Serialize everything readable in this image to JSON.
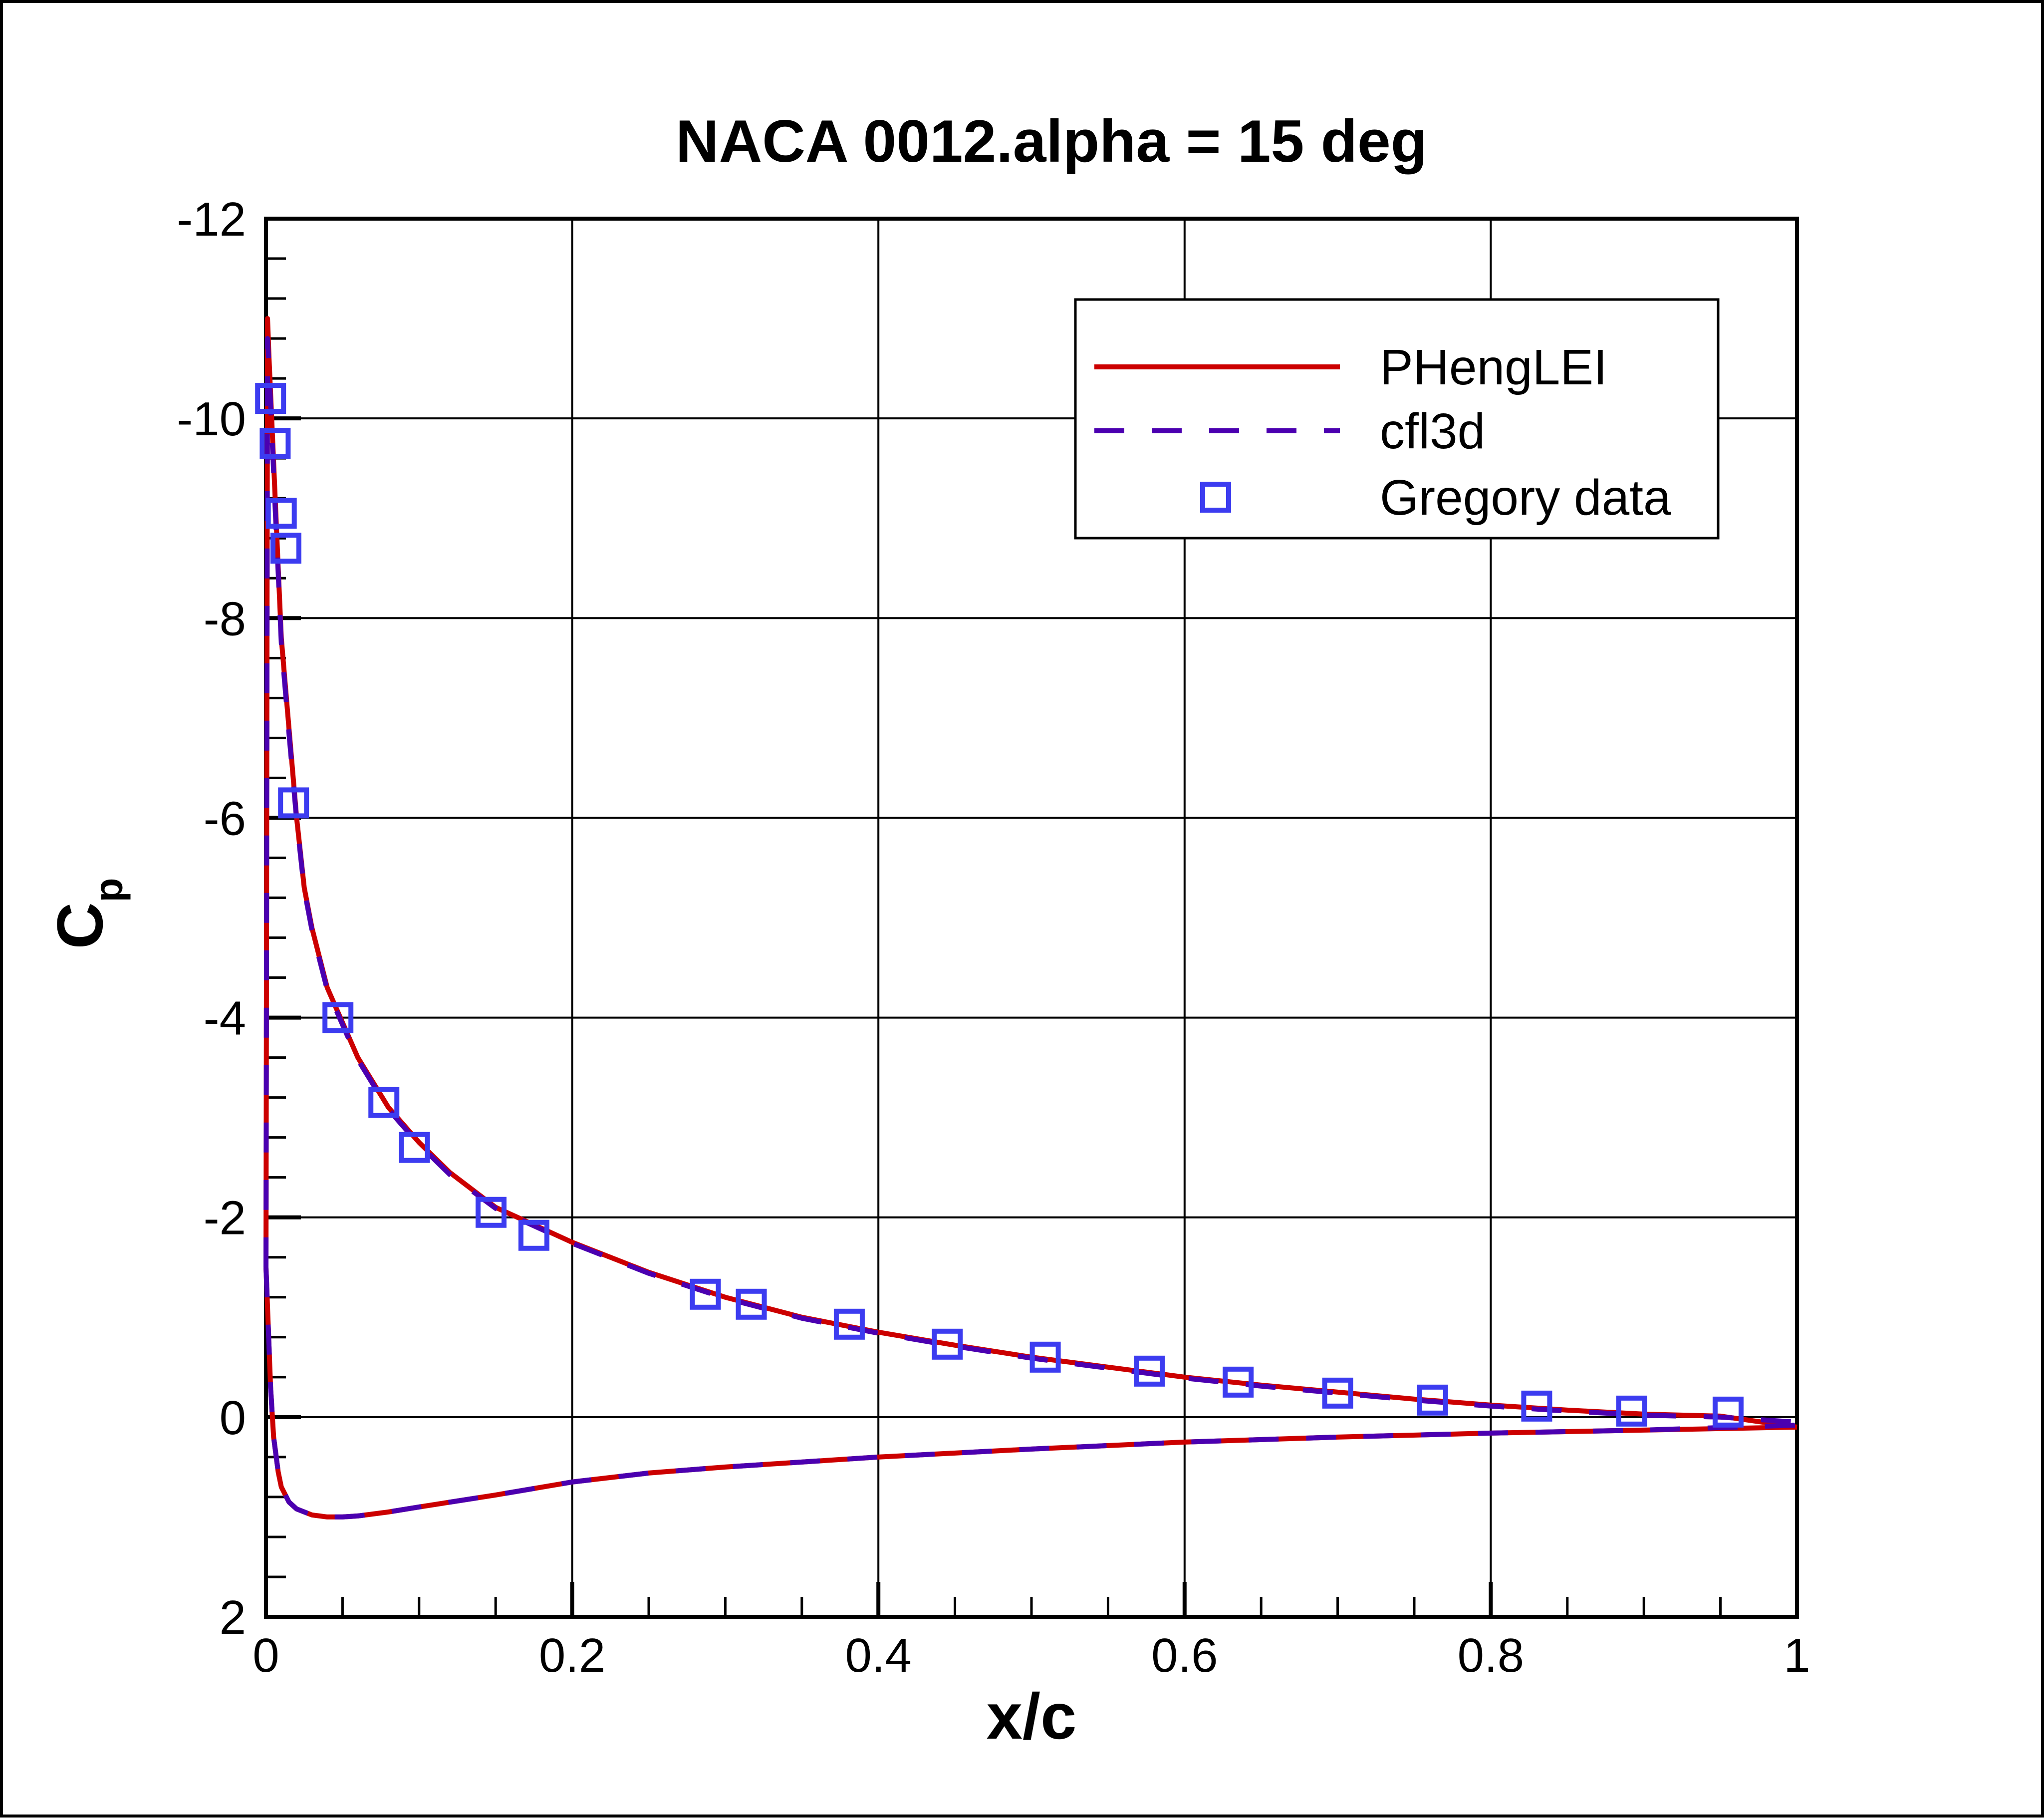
{
  "chart_data": {
    "type": "line",
    "title": "NACA 0012.alpha = 15 deg",
    "xlabel": "x/c",
    "ylabel_main": "C",
    "ylabel_sub": "p",
    "xlim": [
      0,
      1
    ],
    "ylim": [
      2,
      -12
    ],
    "y_inverted": true,
    "grid": true,
    "x_ticks": [
      0,
      0.2,
      0.4,
      0.6,
      0.8,
      1
    ],
    "x_tick_labels": [
      "0",
      "0.2",
      "0.4",
      "0.6",
      "0.8",
      "1"
    ],
    "y_ticks": [
      -12,
      -10,
      -8,
      -6,
      -4,
      -2,
      0,
      2
    ],
    "y_tick_labels": [
      "-12",
      "-10",
      "-8",
      "-6",
      "-4",
      "-2",
      "0",
      "2"
    ],
    "legend_position": "top-right",
    "colors": {
      "phenglei": "#cc0000",
      "cfl3d": "#4b00b0",
      "gregory": "#3c3cf0"
    },
    "series": [
      {
        "name": "PHengLEI",
        "style": "solid",
        "upper": {
          "x": [
            0,
            0.001,
            0.002,
            0.004,
            0.006,
            0.008,
            0.01,
            0.015,
            0.02,
            0.025,
            0.03,
            0.04,
            0.05,
            0.06,
            0.08,
            0.1,
            0.12,
            0.15,
            0.2,
            0.25,
            0.3,
            0.35,
            0.4,
            0.45,
            0.5,
            0.55,
            0.6,
            0.65,
            0.7,
            0.75,
            0.8,
            0.85,
            0.9,
            0.95,
            1.0
          ],
          "y": [
            -1.5,
            -11.0,
            -10.6,
            -9.9,
            -9.2,
            -8.5,
            -7.8,
            -6.9,
            -6.0,
            -5.3,
            -4.9,
            -4.3,
            -3.95,
            -3.6,
            -3.1,
            -2.75,
            -2.45,
            -2.1,
            -1.75,
            -1.45,
            -1.2,
            -1.0,
            -0.85,
            -0.72,
            -0.6,
            -0.5,
            -0.4,
            -0.32,
            -0.25,
            -0.18,
            -0.12,
            -0.07,
            -0.03,
            -0.01,
            0.1
          ]
        },
        "lower": {
          "x": [
            0,
            0.003,
            0.005,
            0.008,
            0.01,
            0.015,
            0.02,
            0.03,
            0.04,
            0.05,
            0.06,
            0.08,
            0.1,
            0.15,
            0.2,
            0.25,
            0.3,
            0.4,
            0.5,
            0.6,
            0.7,
            0.8,
            0.9,
            1.0
          ],
          "y": [
            -1.5,
            -0.3,
            0.2,
            0.55,
            0.7,
            0.85,
            0.92,
            0.98,
            1.0,
            1.0,
            0.99,
            0.95,
            0.9,
            0.78,
            0.65,
            0.56,
            0.5,
            0.4,
            0.32,
            0.25,
            0.2,
            0.16,
            0.13,
            0.1
          ]
        }
      },
      {
        "name": "cfl3d",
        "style": "dashed",
        "upper": {
          "x": [
            0,
            0.001,
            0.002,
            0.004,
            0.006,
            0.008,
            0.01,
            0.015,
            0.02,
            0.025,
            0.03,
            0.04,
            0.05,
            0.06,
            0.08,
            0.1,
            0.12,
            0.15,
            0.2,
            0.25,
            0.3,
            0.35,
            0.4,
            0.45,
            0.5,
            0.55,
            0.6,
            0.65,
            0.7,
            0.75,
            0.8,
            0.85,
            0.9,
            0.95,
            1.0
          ],
          "y": [
            -1.5,
            -10.8,
            -10.5,
            -9.8,
            -9.1,
            -8.45,
            -7.75,
            -6.85,
            -5.98,
            -5.28,
            -4.88,
            -4.28,
            -3.93,
            -3.58,
            -3.08,
            -2.73,
            -2.43,
            -2.09,
            -1.74,
            -1.44,
            -1.19,
            -0.99,
            -0.84,
            -0.71,
            -0.59,
            -0.49,
            -0.39,
            -0.31,
            -0.24,
            -0.17,
            -0.11,
            -0.06,
            -0.02,
            0.0,
            0.05
          ]
        },
        "lower": {
          "x": [
            0,
            0.003,
            0.005,
            0.008,
            0.01,
            0.015,
            0.02,
            0.03,
            0.04,
            0.05,
            0.06,
            0.08,
            0.1,
            0.15,
            0.2,
            0.25,
            0.3,
            0.4,
            0.5,
            0.6,
            0.7,
            0.8,
            0.9,
            1.0
          ],
          "y": [
            -1.5,
            -0.3,
            0.2,
            0.55,
            0.7,
            0.85,
            0.92,
            0.98,
            1.0,
            1.0,
            0.99,
            0.95,
            0.9,
            0.78,
            0.65,
            0.56,
            0.5,
            0.4,
            0.32,
            0.25,
            0.2,
            0.16,
            0.13,
            0.08
          ]
        }
      },
      {
        "name": "Gregory data",
        "style": "markers",
        "marker": "square",
        "x": [
          0.003,
          0.006,
          0.01,
          0.013,
          0.018,
          0.047,
          0.077,
          0.097,
          0.147,
          0.175,
          0.287,
          0.317,
          0.381,
          0.445,
          0.509,
          0.577,
          0.635,
          0.7,
          0.762,
          0.83,
          0.892,
          0.955
        ],
        "y": [
          -10.2,
          -9.75,
          -9.05,
          -8.7,
          -6.15,
          -4.0,
          -3.15,
          -2.7,
          -2.05,
          -1.82,
          -1.23,
          -1.13,
          -0.93,
          -0.73,
          -0.6,
          -0.46,
          -0.35,
          -0.24,
          -0.17,
          -0.11,
          -0.06,
          -0.05
        ]
      }
    ]
  }
}
